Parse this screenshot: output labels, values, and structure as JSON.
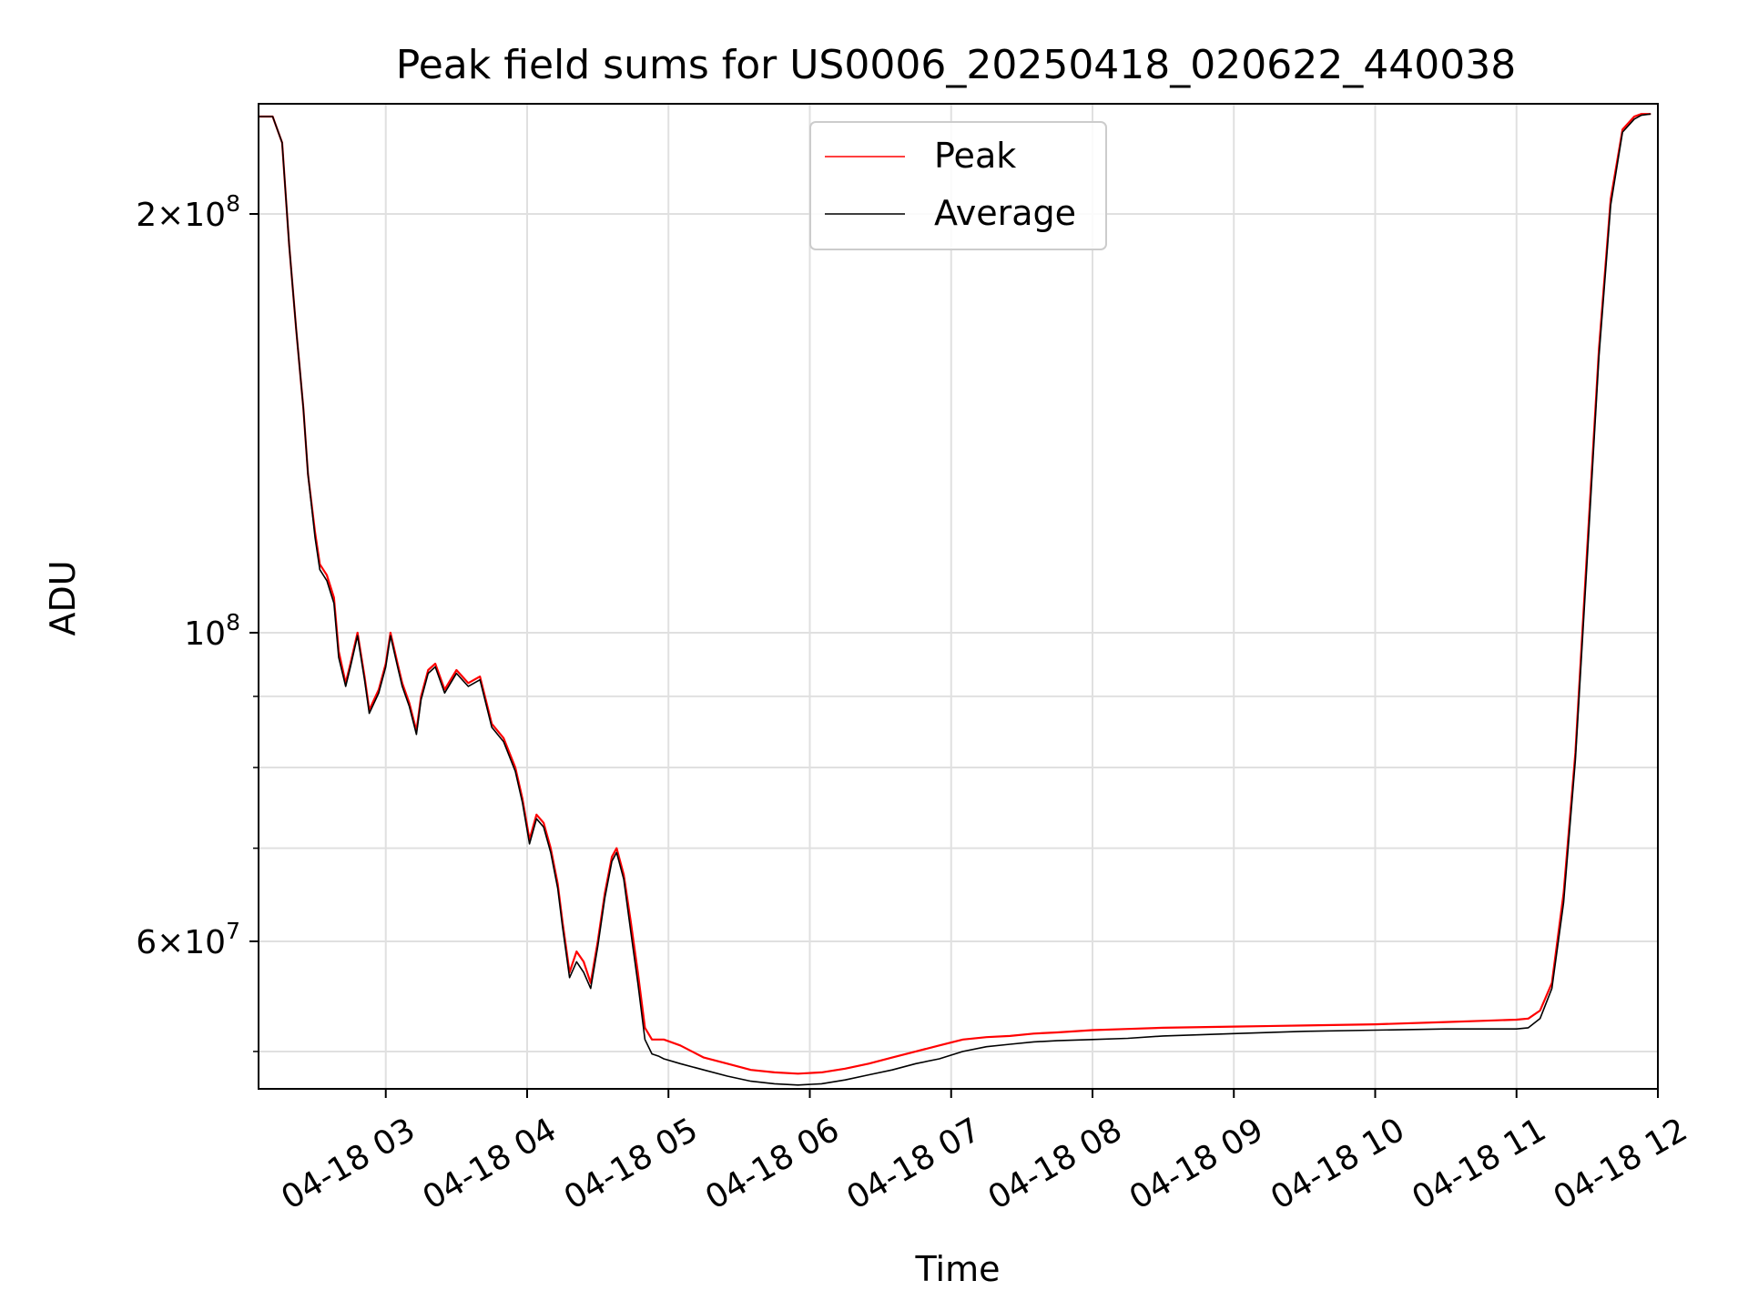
{
  "chart_data": {
    "type": "line",
    "title": "Peak field sums for US0006_20250418_020622_440038",
    "xlabel": "Time",
    "ylabel": "ADU",
    "yscale": "log",
    "grid": true,
    "legend_position": "upper center",
    "colors": {
      "Peak": "#ff0000",
      "Average": "#000000",
      "grid": "#e0e0e0"
    },
    "xlim": [
      "2025-04-18 02:06",
      "2025-04-18 12:00"
    ],
    "ylim": [
      47000000,
      240000000
    ],
    "x_ticks": [
      "2025-04-18 03:00",
      "2025-04-18 04:00",
      "2025-04-18 05:00",
      "2025-04-18 06:00",
      "2025-04-18 07:00",
      "2025-04-18 08:00",
      "2025-04-18 09:00",
      "2025-04-18 10:00",
      "2025-04-18 11:00",
      "2025-04-18 12:00"
    ],
    "x_tick_labels": [
      "04-18 03",
      "04-18 04",
      "04-18 05",
      "04-18 06",
      "04-18 07",
      "04-18 08",
      "04-18 09",
      "04-18 10",
      "04-18 11",
      "04-18 12"
    ],
    "y_major_ticks": [
      {
        "value": 200000000,
        "base": "2",
        "exp": "8",
        "has_mult": true
      },
      {
        "value": 100000000,
        "base": "10",
        "exp": "8",
        "has_mult": false
      },
      {
        "value": 60000000,
        "base": "6",
        "exp": "7",
        "has_mult": true
      }
    ],
    "y_minor_ticks": [
      50000000,
      70000000,
      80000000,
      90000000
    ],
    "series": [
      {
        "name": "Peak",
        "x": [
          "2025-04-18 02:06",
          "2025-04-18 02:12",
          "2025-04-18 02:16",
          "2025-04-18 02:19",
          "2025-04-18 02:22",
          "2025-04-18 02:25",
          "2025-04-18 02:27",
          "2025-04-18 02:30",
          "2025-04-18 02:32",
          "2025-04-18 02:35",
          "2025-04-18 02:38",
          "2025-04-18 02:40",
          "2025-04-18 02:43",
          "2025-04-18 02:45",
          "2025-04-18 02:48",
          "2025-04-18 02:51",
          "2025-04-18 02:53",
          "2025-04-18 02:57",
          "2025-04-18 03:00",
          "2025-04-18 03:02",
          "2025-04-18 03:05",
          "2025-04-18 03:07",
          "2025-04-18 03:10",
          "2025-04-18 03:13",
          "2025-04-18 03:15",
          "2025-04-18 03:18",
          "2025-04-18 03:21",
          "2025-04-18 03:25",
          "2025-04-18 03:30",
          "2025-04-18 03:35",
          "2025-04-18 03:40",
          "2025-04-18 03:45",
          "2025-04-18 03:50",
          "2025-04-18 03:55",
          "2025-04-18 03:58",
          "2025-04-18 04:01",
          "2025-04-18 04:04",
          "2025-04-18 04:07",
          "2025-04-18 04:10",
          "2025-04-18 04:13",
          "2025-04-18 04:15",
          "2025-04-18 04:18",
          "2025-04-18 04:21",
          "2025-04-18 04:24",
          "2025-04-18 04:27",
          "2025-04-18 04:30",
          "2025-04-18 04:33",
          "2025-04-18 04:36",
          "2025-04-18 04:38",
          "2025-04-18 04:41",
          "2025-04-18 04:44",
          "2025-04-18 04:47",
          "2025-04-18 04:50",
          "2025-04-18 04:53",
          "2025-04-18 04:56",
          "2025-04-18 04:58",
          "2025-04-18 05:05",
          "2025-04-18 05:15",
          "2025-04-18 05:25",
          "2025-04-18 05:35",
          "2025-04-18 05:45",
          "2025-04-18 05:55",
          "2025-04-18 06:05",
          "2025-04-18 06:15",
          "2025-04-18 06:25",
          "2025-04-18 06:35",
          "2025-04-18 06:45",
          "2025-04-18 06:55",
          "2025-04-18 07:05",
          "2025-04-18 07:15",
          "2025-04-18 07:25",
          "2025-04-18 07:35",
          "2025-04-18 07:45",
          "2025-04-18 08:00",
          "2025-04-18 08:15",
          "2025-04-18 08:30",
          "2025-04-18 09:00",
          "2025-04-18 09:30",
          "2025-04-18 10:00",
          "2025-04-18 10:30",
          "2025-04-18 10:45",
          "2025-04-18 11:00",
          "2025-04-18 11:05",
          "2025-04-18 11:10",
          "2025-04-18 11:15",
          "2025-04-18 11:20",
          "2025-04-18 11:25",
          "2025-04-18 11:30",
          "2025-04-18 11:35",
          "2025-04-18 11:40",
          "2025-04-18 11:45",
          "2025-04-18 11:50",
          "2025-04-18 11:53",
          "2025-04-18 11:57"
        ],
        "y": [
          235000000,
          235000000,
          225000000,
          190000000,
          165000000,
          145000000,
          130000000,
          118000000,
          112000000,
          110000000,
          106000000,
          97000000,
          92000000,
          95000000,
          100000000,
          93000000,
          88000000,
          91000000,
          95000000,
          100000000,
          95000000,
          92000000,
          89000000,
          85000000,
          90000000,
          94000000,
          95000000,
          91000000,
          94000000,
          92000000,
          93000000,
          86000000,
          84000000,
          80000000,
          76000000,
          71000000,
          74000000,
          73000000,
          70000000,
          66000000,
          62000000,
          57000000,
          59000000,
          58000000,
          56000000,
          60000000,
          65000000,
          69000000,
          70000000,
          67000000,
          62000000,
          57000000,
          52000000,
          51000000,
          51000000,
          51000000,
          50500000,
          49500000,
          49000000,
          48500000,
          48300000,
          48200000,
          48300000,
          48600000,
          49000000,
          49500000,
          50000000,
          50500000,
          51000000,
          51200000,
          51300000,
          51500000,
          51600000,
          51800000,
          51900000,
          52000000,
          52100000,
          52200000,
          52300000,
          52500000,
          52600000,
          52700000,
          52800000,
          53500000,
          56000000,
          65000000,
          82000000,
          115000000,
          160000000,
          205000000,
          230000000,
          235000000,
          236000000,
          236000000
        ]
      },
      {
        "name": "Average",
        "x": [
          "2025-04-18 02:06",
          "2025-04-18 02:12",
          "2025-04-18 02:16",
          "2025-04-18 02:19",
          "2025-04-18 02:22",
          "2025-04-18 02:25",
          "2025-04-18 02:27",
          "2025-04-18 02:30",
          "2025-04-18 02:32",
          "2025-04-18 02:35",
          "2025-04-18 02:38",
          "2025-04-18 02:40",
          "2025-04-18 02:43",
          "2025-04-18 02:45",
          "2025-04-18 02:48",
          "2025-04-18 02:51",
          "2025-04-18 02:53",
          "2025-04-18 02:57",
          "2025-04-18 03:00",
          "2025-04-18 03:02",
          "2025-04-18 03:05",
          "2025-04-18 03:07",
          "2025-04-18 03:10",
          "2025-04-18 03:13",
          "2025-04-18 03:15",
          "2025-04-18 03:18",
          "2025-04-18 03:21",
          "2025-04-18 03:25",
          "2025-04-18 03:30",
          "2025-04-18 03:35",
          "2025-04-18 03:40",
          "2025-04-18 03:45",
          "2025-04-18 03:50",
          "2025-04-18 03:55",
          "2025-04-18 03:58",
          "2025-04-18 04:01",
          "2025-04-18 04:04",
          "2025-04-18 04:07",
          "2025-04-18 04:10",
          "2025-04-18 04:13",
          "2025-04-18 04:15",
          "2025-04-18 04:18",
          "2025-04-18 04:21",
          "2025-04-18 04:24",
          "2025-04-18 04:27",
          "2025-04-18 04:30",
          "2025-04-18 04:33",
          "2025-04-18 04:36",
          "2025-04-18 04:38",
          "2025-04-18 04:41",
          "2025-04-18 04:44",
          "2025-04-18 04:47",
          "2025-04-18 04:50",
          "2025-04-18 04:53",
          "2025-04-18 04:56",
          "2025-04-18 04:58",
          "2025-04-18 05:05",
          "2025-04-18 05:15",
          "2025-04-18 05:25",
          "2025-04-18 05:35",
          "2025-04-18 05:45",
          "2025-04-18 05:55",
          "2025-04-18 06:05",
          "2025-04-18 06:15",
          "2025-04-18 06:25",
          "2025-04-18 06:35",
          "2025-04-18 06:45",
          "2025-04-18 06:55",
          "2025-04-18 07:05",
          "2025-04-18 07:15",
          "2025-04-18 07:25",
          "2025-04-18 07:35",
          "2025-04-18 07:45",
          "2025-04-18 08:00",
          "2025-04-18 08:15",
          "2025-04-18 08:30",
          "2025-04-18 09:00",
          "2025-04-18 09:30",
          "2025-04-18 10:00",
          "2025-04-18 10:30",
          "2025-04-18 10:45",
          "2025-04-18 11:00",
          "2025-04-18 11:05",
          "2025-04-18 11:10",
          "2025-04-18 11:15",
          "2025-04-18 11:20",
          "2025-04-18 11:25",
          "2025-04-18 11:30",
          "2025-04-18 11:35",
          "2025-04-18 11:40",
          "2025-04-18 11:45",
          "2025-04-18 11:50",
          "2025-04-18 11:53",
          "2025-04-18 11:57"
        ],
        "y": [
          235000000,
          235000000,
          225000000,
          190000000,
          165000000,
          145000000,
          130000000,
          117000000,
          111000000,
          109000000,
          105000000,
          96000000,
          91500000,
          94500000,
          99500000,
          92500000,
          87500000,
          90500000,
          94500000,
          99500000,
          94500000,
          91500000,
          88500000,
          84500000,
          89500000,
          93500000,
          94500000,
          90500000,
          93500000,
          91500000,
          92500000,
          85500000,
          83500000,
          79500000,
          75500000,
          70500000,
          73500000,
          72500000,
          69500000,
          65500000,
          61500000,
          56500000,
          58000000,
          57000000,
          55500000,
          59500000,
          64500000,
          68500000,
          69500000,
          66500000,
          61000000,
          56000000,
          51000000,
          49800000,
          49600000,
          49400000,
          49000000,
          48500000,
          48000000,
          47600000,
          47400000,
          47300000,
          47400000,
          47700000,
          48100000,
          48500000,
          49000000,
          49400000,
          50000000,
          50400000,
          50600000,
          50800000,
          50900000,
          51000000,
          51100000,
          51300000,
          51500000,
          51700000,
          51800000,
          51900000,
          51900000,
          51900000,
          52000000,
          52800000,
          55500000,
          64000000,
          81000000,
          113000000,
          158000000,
          203000000,
          229000000,
          234000000,
          235500000,
          236000000
        ]
      }
    ]
  }
}
